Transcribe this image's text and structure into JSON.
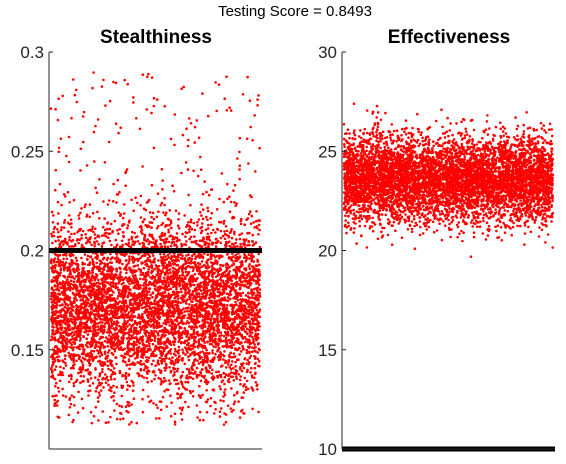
{
  "figure": {
    "suptitle": "Testing Score =  0.8493"
  },
  "chart_data": [
    {
      "type": "scatter",
      "title": "Stealthiness",
      "xlabel": "",
      "ylabel": "",
      "ylim": [
        0.1,
        0.3
      ],
      "yticks": [
        0.15,
        0.2,
        0.25,
        0.3
      ],
      "ytick_labels": [
        "0.15",
        "0.2",
        "0.25",
        "0.3"
      ],
      "point_color": "#ff0000",
      "threshold": 0.2,
      "threshold_color": "#000000",
      "point_count": 6000,
      "distribution": {
        "main_mean": 0.172,
        "main_sd": 0.022,
        "main_min": 0.112,
        "main_max": 0.235,
        "outlier_fraction": 0.02,
        "outlier_range": [
          0.235,
          0.29
        ]
      },
      "grid": false
    },
    {
      "type": "scatter",
      "title": "Effectiveness",
      "xlabel": "",
      "ylabel": "",
      "ylim": [
        10,
        30
      ],
      "yticks": [
        10,
        15,
        20,
        25,
        30
      ],
      "ytick_labels": [
        "10",
        "15",
        "20",
        "25",
        "30"
      ],
      "point_color": "#ff0000",
      "threshold": 10,
      "threshold_color": "#000000",
      "point_count": 6000,
      "distribution": {
        "main_mean": 23.6,
        "main_sd": 1.1,
        "main_min": 19.4,
        "main_max": 28.2,
        "outlier_fraction": 0.0,
        "outlier_range": [
          19.4,
          28.2
        ]
      },
      "grid": false
    }
  ]
}
